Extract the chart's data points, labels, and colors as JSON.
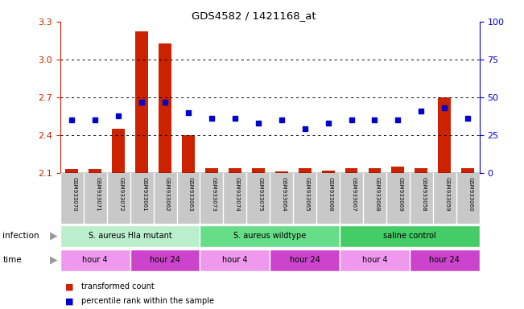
{
  "title": "GDS4582 / 1421168_at",
  "samples": [
    "GSM933070",
    "GSM933071",
    "GSM933072",
    "GSM933061",
    "GSM933062",
    "GSM933063",
    "GSM933073",
    "GSM933074",
    "GSM933075",
    "GSM933064",
    "GSM933065",
    "GSM933066",
    "GSM933067",
    "GSM933068",
    "GSM933069",
    "GSM933058",
    "GSM933059",
    "GSM933060"
  ],
  "red_values": [
    2.13,
    2.13,
    2.45,
    3.22,
    3.13,
    2.4,
    2.14,
    2.14,
    2.14,
    2.11,
    2.14,
    2.12,
    2.14,
    2.14,
    2.15,
    2.14,
    2.7,
    2.14
  ],
  "blue_values": [
    35,
    35,
    38,
    47,
    47,
    40,
    36,
    36,
    33,
    35,
    29,
    33,
    35,
    35,
    35,
    41,
    43,
    36
  ],
  "ylim": [
    2.1,
    3.3
  ],
  "yticks_left": [
    2.1,
    2.4,
    2.7,
    3.0,
    3.3
  ],
  "yticks_right": [
    0,
    25,
    50,
    75,
    100
  ],
  "bar_color": "#CC2200",
  "dot_color": "#0000CC",
  "sample_bg": "#C8C8C8",
  "groups": [
    {
      "label": "S. aureus Hla mutant",
      "start": 0,
      "end": 6,
      "color": "#BBEECC"
    },
    {
      "label": "S. aureus wildtype",
      "start": 6,
      "end": 12,
      "color": "#66DD88"
    },
    {
      "label": "saline control",
      "start": 12,
      "end": 18,
      "color": "#44CC66"
    }
  ],
  "time_groups": [
    {
      "label": "hour 4",
      "start": 0,
      "end": 3,
      "color": "#EE99EE"
    },
    {
      "label": "hour 24",
      "start": 3,
      "end": 6,
      "color": "#CC44CC"
    },
    {
      "label": "hour 4",
      "start": 6,
      "end": 9,
      "color": "#EE99EE"
    },
    {
      "label": "hour 24",
      "start": 9,
      "end": 12,
      "color": "#CC44CC"
    },
    {
      "label": "hour 4",
      "start": 12,
      "end": 15,
      "color": "#EE99EE"
    },
    {
      "label": "hour 24",
      "start": 15,
      "end": 18,
      "color": "#CC44CC"
    }
  ],
  "infection_label": "infection",
  "time_label": "time",
  "legend_red": "transformed count",
  "legend_blue": "percentile rank within the sample",
  "bg_color": "#FFFFFF",
  "tick_label_color_left": "#CC2200",
  "tick_label_color_right": "#0000CC",
  "arrow_color": "#999999"
}
